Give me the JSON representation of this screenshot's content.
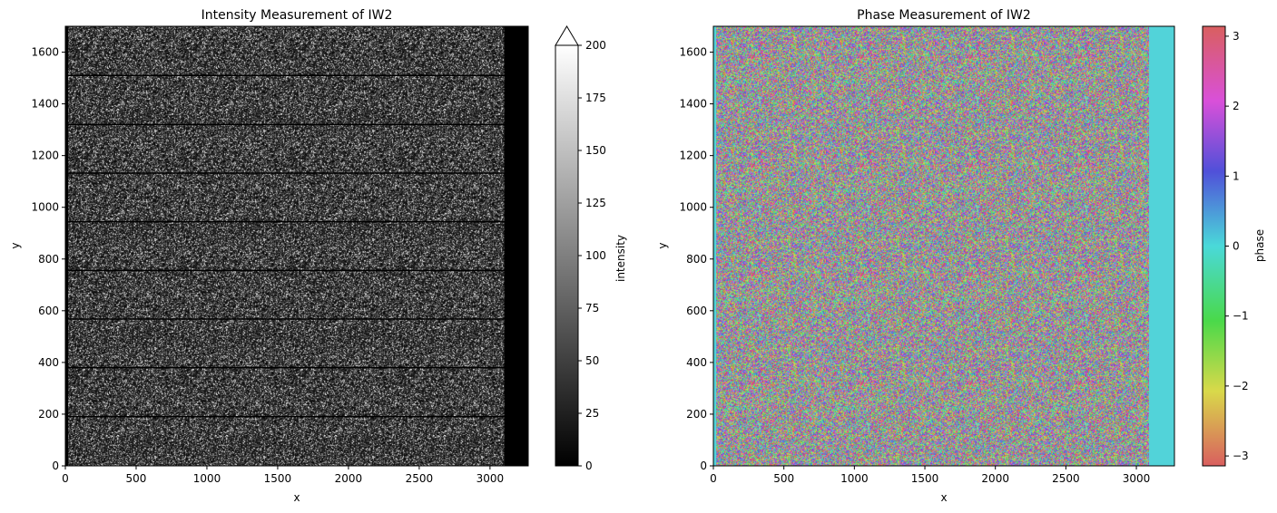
{
  "chart_data": [
    {
      "type": "heatmap",
      "title": "Intensity Measurement of IW2",
      "xlabel": "x",
      "ylabel": "y",
      "xlim": [
        0,
        3270
      ],
      "ylim": [
        0,
        1700
      ],
      "x_ticks": [
        0,
        500,
        1000,
        1500,
        2000,
        2500,
        3000
      ],
      "y_ticks": [
        0,
        200,
        400,
        600,
        800,
        1000,
        1200,
        1400,
        1600
      ],
      "valid_x_range": [
        20,
        3100
      ],
      "burst_boundaries_y": [
        190,
        380,
        568,
        756,
        944,
        1132,
        1320,
        1510
      ],
      "colormap": "gray",
      "colorbar": {
        "label": "intensity",
        "vmin": 0,
        "vmax": 200,
        "extend": "max",
        "ticks": [
          0,
          25,
          50,
          75,
          100,
          125,
          150,
          175,
          200
        ]
      }
    },
    {
      "type": "heatmap",
      "title": "Phase Measurement of IW2",
      "xlabel": "x",
      "ylabel": "y",
      "xlim": [
        0,
        3270
      ],
      "ylim": [
        0,
        1700
      ],
      "x_ticks": [
        0,
        500,
        1000,
        1500,
        2000,
        2500,
        3000
      ],
      "y_ticks": [
        0,
        200,
        400,
        600,
        800,
        1000,
        1200,
        1400,
        1600
      ],
      "valid_x_range": [
        20,
        3090
      ],
      "fill_value": 0,
      "colormap": "hls (cyclic)",
      "colorbar": {
        "label": "phase",
        "vmin": -3.14159,
        "vmax": 3.14159,
        "ticks": [
          -3,
          -2,
          -1,
          0,
          1,
          2,
          3
        ],
        "tick_labels": [
          "−3",
          "−2",
          "−1",
          "0",
          "1",
          "2",
          "3"
        ]
      }
    }
  ]
}
